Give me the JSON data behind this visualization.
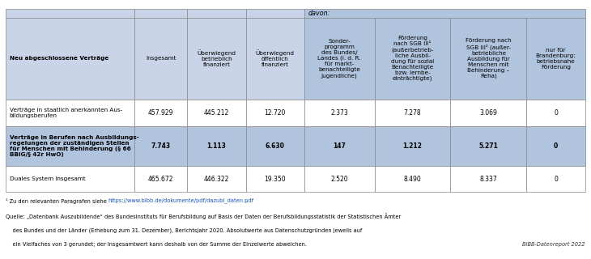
{
  "col_widths_rel": [
    2.2,
    0.9,
    1.0,
    1.0,
    1.2,
    1.3,
    1.3,
    1.0
  ],
  "col_headers": [
    "Neu abgeschlossene Verträge",
    "Insgesamt",
    "Überwiegend\nbetrieblich\nfinanziert",
    "Überwiegend\nöffentlich\nfinanziert",
    "Sonder-\nprogramm\ndes Bundes/\nLandes (i. d. R.\nfür markt-\nbenachteiligte\nJugendliche)",
    "Förderung\nnach SGB III¹\n(außerbetrieb-\nliche Ausbil-\ndung für sozial\nBenachteiligte\nbzw. lernbe-\neinträchtigte)",
    "Förderung nach\nSGB III² (außer-\nbetriebliche\nAusbildung für\nMenschen mit\nBehinderung –\nReha)",
    "nur für\nBrandenburg:\nbetriebsnahe\nFörderung"
  ],
  "rows": [
    {
      "label": "Verträge in staatlich anerkannten Aus-\nbildungsberufen",
      "values": [
        "457.929",
        "445.212",
        "12.720",
        "2.373",
        "7.278",
        "3.069",
        "0"
      ],
      "highlight": false
    },
    {
      "label": "Verträge in Berufen nach Ausbildungs-\nregelungen der zuständigen Stellen\nfür Menschen mit Behinderung (§ 66\nBBiG/§ 42r HwO)",
      "values": [
        "7.743",
        "1.113",
        "6.630",
        "147",
        "1.212",
        "5.271",
        "0"
      ],
      "highlight": true
    },
    {
      "label": "Duales System insgesamt",
      "values": [
        "465.672",
        "446.322",
        "19.350",
        "2.520",
        "8.490",
        "8.337",
        "0"
      ],
      "highlight": false
    }
  ],
  "footnote1_plain": "¹ Zu den relevanten Paragrafen siehe ",
  "footnote1_link": "https://www.bibb.de/dokumente/pdf/dazubi_daten.pdf",
  "footnote1_end": ".",
  "footnote2": "Quelle: „Datenbank Auszubildende“ des Bundesinstituts für Berufsbildung auf Basis der Daten der Berufsbildungsstatistik der Statistischen Ämter",
  "footnote3": "    des Bundes und der Länder (Erhebung zum 31. Dezember), Berichtsjahr 2020. Absolutwerte aus Datenschutzgründen jeweils auf",
  "footnote4": "    ein Vielfaches von 3 gerundet; der Insgesamtwert kann deshalb von der Summe der Einzelwerte abweichen.",
  "branding": "BIBB-Datenreport 2022",
  "header_bg": "#c9d4e8",
  "subheader_bg": "#b0c4de",
  "highlight_bg": "#b0c4de",
  "white_bg": "#ffffff",
  "border_color": "#888888",
  "link_color": "#1155cc",
  "davon_text": "davon:"
}
